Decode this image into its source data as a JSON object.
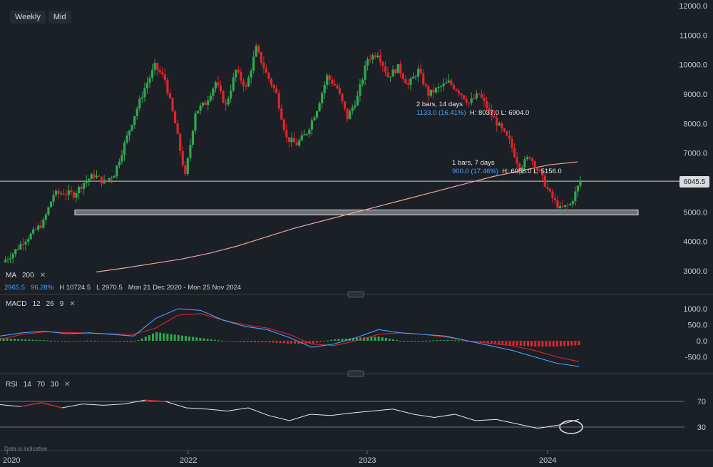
{
  "toolbar": {
    "interval": "Weekly",
    "price_type": "Mid"
  },
  "ma": {
    "label": "MA",
    "period": "200",
    "low_value": "2965.5",
    "change_pct": "96.28%",
    "high": "H 10724.5",
    "low": "L 2970.5",
    "range": "Mon 21 Dec 2020 - Mon 25 Nov 2024"
  },
  "macd": {
    "label": "MACD",
    "fast": "12",
    "slow": "26",
    "signal": "9"
  },
  "rsi": {
    "label": "RSI",
    "period": "14",
    "upper": "70",
    "lower": "30"
  },
  "current_price": "6045.5",
  "annotation1": {
    "title": "2 bars, 14 days",
    "change": "1133.0 (16.41%)",
    "hl": "H: 8037.0 L: 6904.0"
  },
  "annotation2": {
    "title": "1 bars, 7 days",
    "change": "900.0 (17.46%)",
    "hl": "H: 6056.0 L: 5156.0"
  },
  "disclaimer": "Data is indicative",
  "colors": {
    "up": "#2fa84f",
    "down": "#e0242b",
    "ma": "#e8a89c",
    "macd": "#4aa3ff",
    "signal": "#e0242b",
    "rsi": "#e6e8eb",
    "rsi_over": "#e0242b"
  },
  "chart_data": {
    "type": "candlestick",
    "x_ticks": [
      "2020",
      "2022",
      "2023",
      "2024"
    ],
    "price_axis": {
      "min": 2000,
      "max": 12000,
      "ticks": [
        "12000.0",
        "11000.0",
        "10000.0",
        "9000.0",
        "8000.0",
        "7000.0",
        "6000.0",
        "5000.0",
        "4000.0",
        "3000.0"
      ]
    },
    "macd_axis": {
      "ticks": [
        "1000.0",
        "500.0",
        "0.0",
        "-500.0"
      ]
    },
    "rsi_axis": {
      "ticks": [
        "70",
        "30"
      ]
    },
    "price_path": [
      3300,
      3600,
      4000,
      4300,
      4650,
      5600,
      5650,
      5600,
      6000,
      6250,
      6000,
      6300,
      7300,
      8300,
      9200,
      9950,
      9500,
      8000,
      6200,
      8400,
      8700,
      9400,
      8600,
      9800,
      9200,
      10550,
      9700,
      9000,
      7500,
      7300,
      7700,
      8500,
      9600,
      9200,
      8200,
      8900,
      10200,
      10400,
      9600,
      9900,
      9300,
      9800,
      9000,
      9200,
      9400,
      9100,
      8700,
      9000,
      8400,
      7900,
      7400,
      6500,
      6900,
      6300,
      5600,
      5100,
      5250,
      6045.5
    ],
    "ma_path": [
      2965.5,
      3100,
      3250,
      3400,
      3600,
      3850,
      4150,
      4450,
      4700,
      4950,
      5200,
      5450,
      5700,
      5950,
      6200,
      6400,
      6600,
      6700
    ],
    "support_zone": [
      4900,
      5070
    ],
    "resistance_line": 6045.5,
    "macd_path": [
      150,
      250,
      300,
      220,
      250,
      200,
      150,
      700,
      1000,
      950,
      650,
      450,
      350,
      100,
      -200,
      -100,
      100,
      350,
      250,
      200,
      150,
      0,
      -150,
      -300,
      -500,
      -700,
      -800
    ],
    "signal_path": [
      50,
      200,
      280,
      260,
      240,
      220,
      200,
      400,
      800,
      850,
      650,
      500,
      400,
      200,
      -100,
      -150,
      0,
      200,
      250,
      200,
      120,
      0,
      -80,
      -150,
      -300,
      -500,
      -650
    ],
    "rsi_path": [
      65,
      62,
      68,
      60,
      66,
      64,
      66,
      72,
      70,
      60,
      58,
      55,
      60,
      48,
      40,
      50,
      48,
      52,
      55,
      58,
      50,
      45,
      50,
      40,
      42,
      35,
      28,
      33,
      42
    ]
  }
}
